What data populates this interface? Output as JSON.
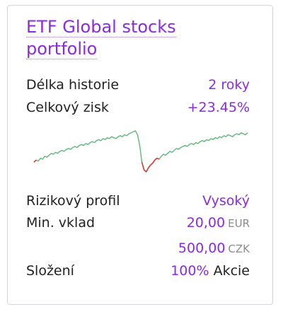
{
  "card": {
    "title": "ETF Global stocks portfolio",
    "history_label": "Délka historie",
    "history_value": "2 roky",
    "profit_label": "Celkový zisk",
    "profit_value": "+23.45%",
    "risk_label": "Rizikový profil",
    "risk_value": "Vysoký",
    "min_deposit_label": "Min. vklad",
    "min_deposit_eur_value": "20,00",
    "min_deposit_eur_unit": "EUR",
    "min_deposit_czk_value": "500,00",
    "min_deposit_czk_unit": "CZK",
    "composition_label": "Složení",
    "composition_percent": "100%",
    "composition_asset": "Akcie"
  },
  "sparkline": {
    "up_color": "#5fb87a",
    "down_color": "#d63a3a",
    "values": [
      38,
      40,
      39,
      42,
      41,
      44,
      43,
      45,
      47,
      46,
      48,
      47,
      49,
      50,
      49,
      51,
      52,
      51,
      53,
      54,
      53,
      55,
      56,
      55,
      57,
      56,
      58,
      59,
      58,
      60,
      61,
      60,
      62,
      61,
      63,
      62,
      64,
      63,
      62,
      64,
      65,
      64,
      66,
      65,
      67,
      68,
      69,
      70,
      66,
      55,
      38,
      30,
      28,
      32,
      35,
      37,
      40,
      42,
      41,
      44,
      46,
      45,
      47,
      49,
      48,
      50,
      52,
      51,
      53,
      54,
      55,
      54,
      56,
      57,
      56,
      58,
      57,
      59,
      60,
      59,
      61,
      60,
      62,
      61,
      63,
      62,
      64,
      63,
      65,
      64,
      66,
      65,
      64,
      66,
      67,
      66,
      68,
      67,
      66,
      68
    ]
  }
}
